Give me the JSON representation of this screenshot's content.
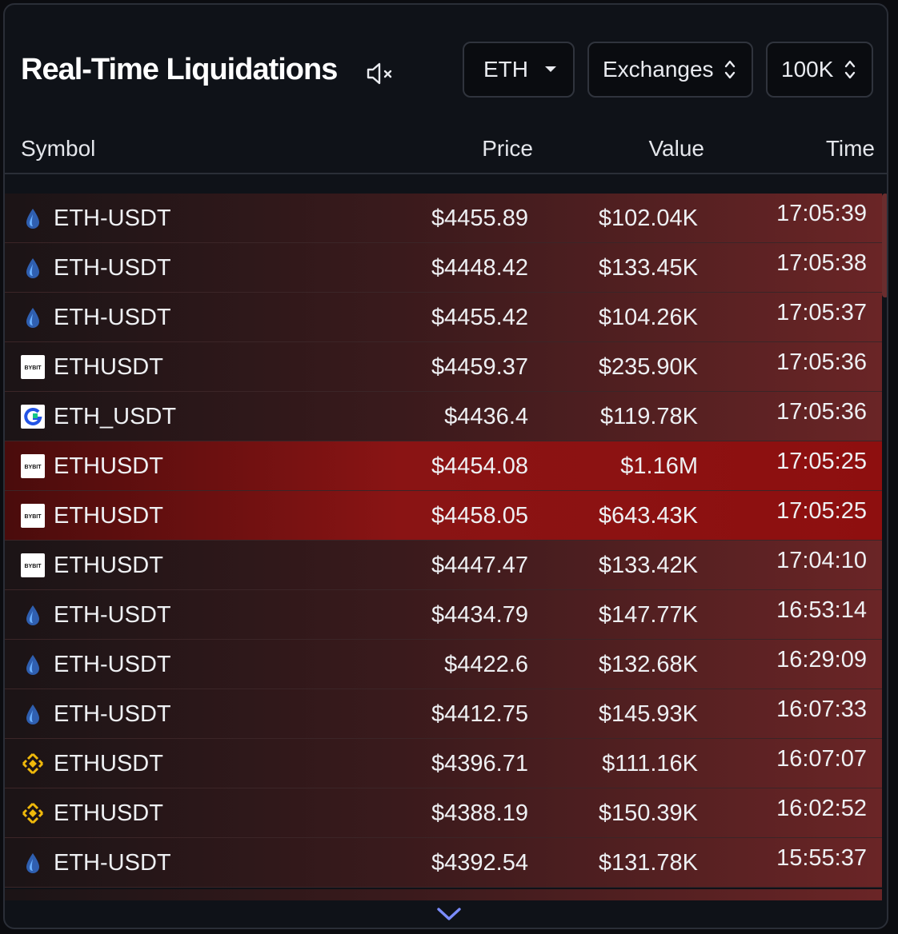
{
  "header": {
    "title": "Real-Time Liquidations",
    "coin_select": "ETH",
    "exchange_select": "Exchanges",
    "threshold_select": "100K"
  },
  "columns": {
    "symbol": "Symbol",
    "price": "Price",
    "value": "Value",
    "time": "Time"
  },
  "rows": [
    {
      "exchange_icon": "hyperliquid-icon",
      "symbol": "ETH-USDT",
      "price": "$4455.89",
      "value": "$102.04K",
      "time": "17:05:39",
      "large": false
    },
    {
      "exchange_icon": "hyperliquid-icon",
      "symbol": "ETH-USDT",
      "price": "$4448.42",
      "value": "$133.45K",
      "time": "17:05:38",
      "large": false
    },
    {
      "exchange_icon": "hyperliquid-icon",
      "symbol": "ETH-USDT",
      "price": "$4455.42",
      "value": "$104.26K",
      "time": "17:05:37",
      "large": false
    },
    {
      "exchange_icon": "bybit-icon",
      "symbol": "ETHUSDT",
      "price": "$4459.37",
      "value": "$235.90K",
      "time": "17:05:36",
      "large": false
    },
    {
      "exchange_icon": "gate-icon",
      "symbol": "ETH_USDT",
      "price": "$4436.4",
      "value": "$119.78K",
      "time": "17:05:36",
      "large": false
    },
    {
      "exchange_icon": "bybit-icon",
      "symbol": "ETHUSDT",
      "price": "$4454.08",
      "value": "$1.16M",
      "time": "17:05:25",
      "large": true
    },
    {
      "exchange_icon": "bybit-icon",
      "symbol": "ETHUSDT",
      "price": "$4458.05",
      "value": "$643.43K",
      "time": "17:05:25",
      "large": true
    },
    {
      "exchange_icon": "bybit-icon",
      "symbol": "ETHUSDT",
      "price": "$4447.47",
      "value": "$133.42K",
      "time": "17:04:10",
      "large": false
    },
    {
      "exchange_icon": "hyperliquid-icon",
      "symbol": "ETH-USDT",
      "price": "$4434.79",
      "value": "$147.77K",
      "time": "16:53:14",
      "large": false
    },
    {
      "exchange_icon": "hyperliquid-icon",
      "symbol": "ETH-USDT",
      "price": "$4422.6",
      "value": "$132.68K",
      "time": "16:29:09",
      "large": false
    },
    {
      "exchange_icon": "hyperliquid-icon",
      "symbol": "ETH-USDT",
      "price": "$4412.75",
      "value": "$145.93K",
      "time": "16:07:33",
      "large": false
    },
    {
      "exchange_icon": "binance-icon",
      "symbol": "ETHUSDT",
      "price": "$4396.71",
      "value": "$111.16K",
      "time": "16:07:07",
      "large": false
    },
    {
      "exchange_icon": "binance-icon",
      "symbol": "ETHUSDT",
      "price": "$4388.19",
      "value": "$150.39K",
      "time": "16:02:52",
      "large": false
    },
    {
      "exchange_icon": "hyperliquid-icon",
      "symbol": "ETH-USDT",
      "price": "$4392.54",
      "value": "$131.78K",
      "time": "15:55:37",
      "large": false
    }
  ],
  "icons": {
    "mute": "speaker-mute-icon",
    "dropdown": "caret-down-icon",
    "sort": "chevron-up-down-icon",
    "more": "chevron-down-icon"
  },
  "colors": {
    "accent": "#7b8cff",
    "large_row": "#8a1414",
    "row_gradient_end": "#6a2526"
  }
}
